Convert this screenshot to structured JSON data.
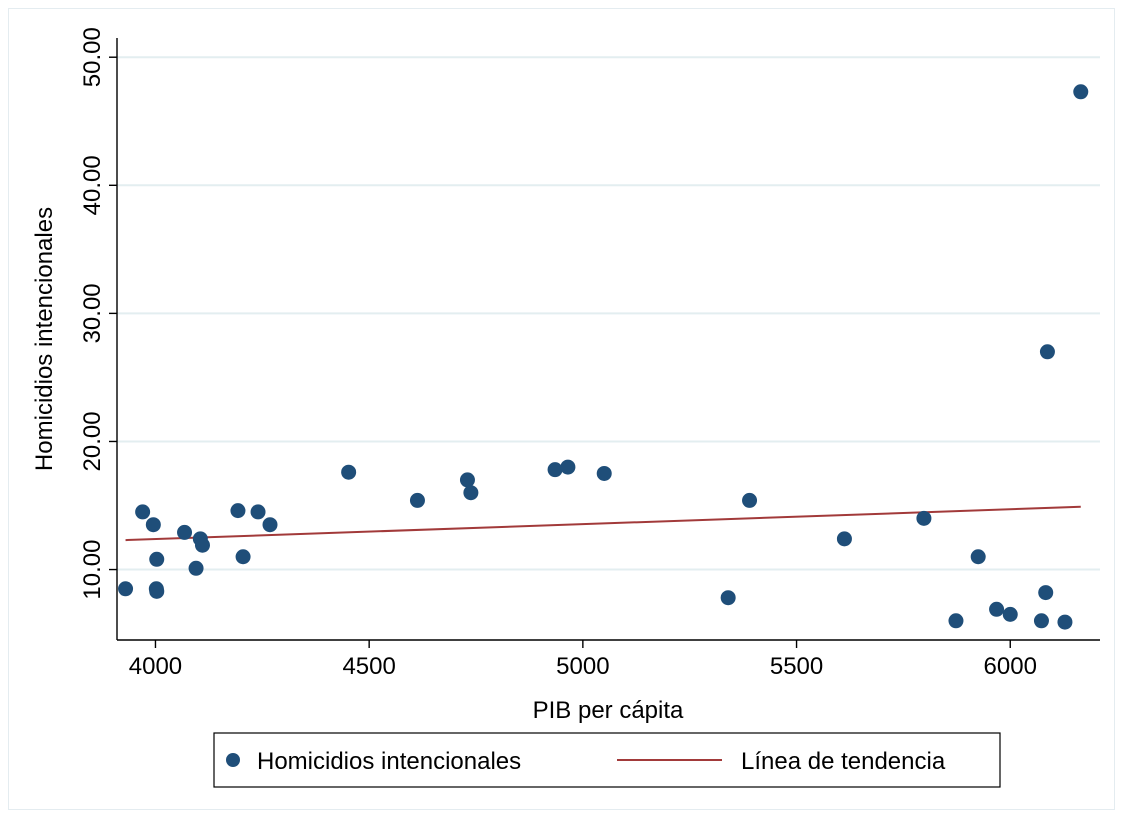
{
  "chart_data": {
    "type": "scatter",
    "xlabel": "PIB per cápita",
    "ylabel": "Homicidios intencionales",
    "xlim": [
      3910,
      6210
    ],
    "ylim": [
      4.5,
      51.5
    ],
    "x_ticks": [
      {
        "value": 4000,
        "label": "4000"
      },
      {
        "value": 4500,
        "label": "4500"
      },
      {
        "value": 5000,
        "label": "5000"
      },
      {
        "value": 5500,
        "label": "5500"
      },
      {
        "value": 6000,
        "label": "6000"
      }
    ],
    "y_ticks": [
      {
        "value": 10,
        "label": "10.00"
      },
      {
        "value": 20,
        "label": "20.00"
      },
      {
        "value": 30,
        "label": "30.00"
      },
      {
        "value": 40,
        "label": "40.00"
      },
      {
        "value": 50,
        "label": "50.00"
      }
    ],
    "grid": "horizontal",
    "legend_position": "bottom",
    "series": [
      {
        "name": "Homicidios intencionales",
        "kind": "scatter",
        "color": "#1f4e79",
        "points": [
          {
            "x": 3930,
            "y": 8.5
          },
          {
            "x": 3970,
            "y": 14.5
          },
          {
            "x": 3995,
            "y": 13.5
          },
          {
            "x": 4003,
            "y": 10.8
          },
          {
            "x": 4002,
            "y": 8.5
          },
          {
            "x": 4003,
            "y": 8.3
          },
          {
            "x": 4068,
            "y": 12.9
          },
          {
            "x": 4095,
            "y": 10.1
          },
          {
            "x": 4105,
            "y": 12.4
          },
          {
            "x": 4110,
            "y": 11.9
          },
          {
            "x": 4193,
            "y": 14.6
          },
          {
            "x": 4205,
            "y": 11.0
          },
          {
            "x": 4240,
            "y": 14.5
          },
          {
            "x": 4268,
            "y": 13.5
          },
          {
            "x": 4452,
            "y": 17.6
          },
          {
            "x": 4613,
            "y": 15.4
          },
          {
            "x": 4730,
            "y": 17.0
          },
          {
            "x": 4738,
            "y": 16.0
          },
          {
            "x": 4935,
            "y": 17.8
          },
          {
            "x": 4965,
            "y": 18.0
          },
          {
            "x": 5050,
            "y": 17.5
          },
          {
            "x": 5340,
            "y": 7.8
          },
          {
            "x": 5390,
            "y": 15.4
          },
          {
            "x": 5612,
            "y": 12.4
          },
          {
            "x": 5798,
            "y": 14.0
          },
          {
            "x": 5873,
            "y": 6.0
          },
          {
            "x": 5925,
            "y": 11.0
          },
          {
            "x": 5968,
            "y": 6.9
          },
          {
            "x": 6000,
            "y": 6.5
          },
          {
            "x": 6073,
            "y": 6.0
          },
          {
            "x": 6083,
            "y": 8.2
          },
          {
            "x": 6087,
            "y": 27.0
          },
          {
            "x": 6128,
            "y": 5.9
          },
          {
            "x": 6165,
            "y": 47.3
          }
        ]
      },
      {
        "name": "Línea de tendencia",
        "kind": "line",
        "color": "#a23a3a",
        "points": [
          {
            "x": 3930,
            "y": 12.3
          },
          {
            "x": 6165,
            "y": 14.9
          }
        ]
      }
    ]
  }
}
